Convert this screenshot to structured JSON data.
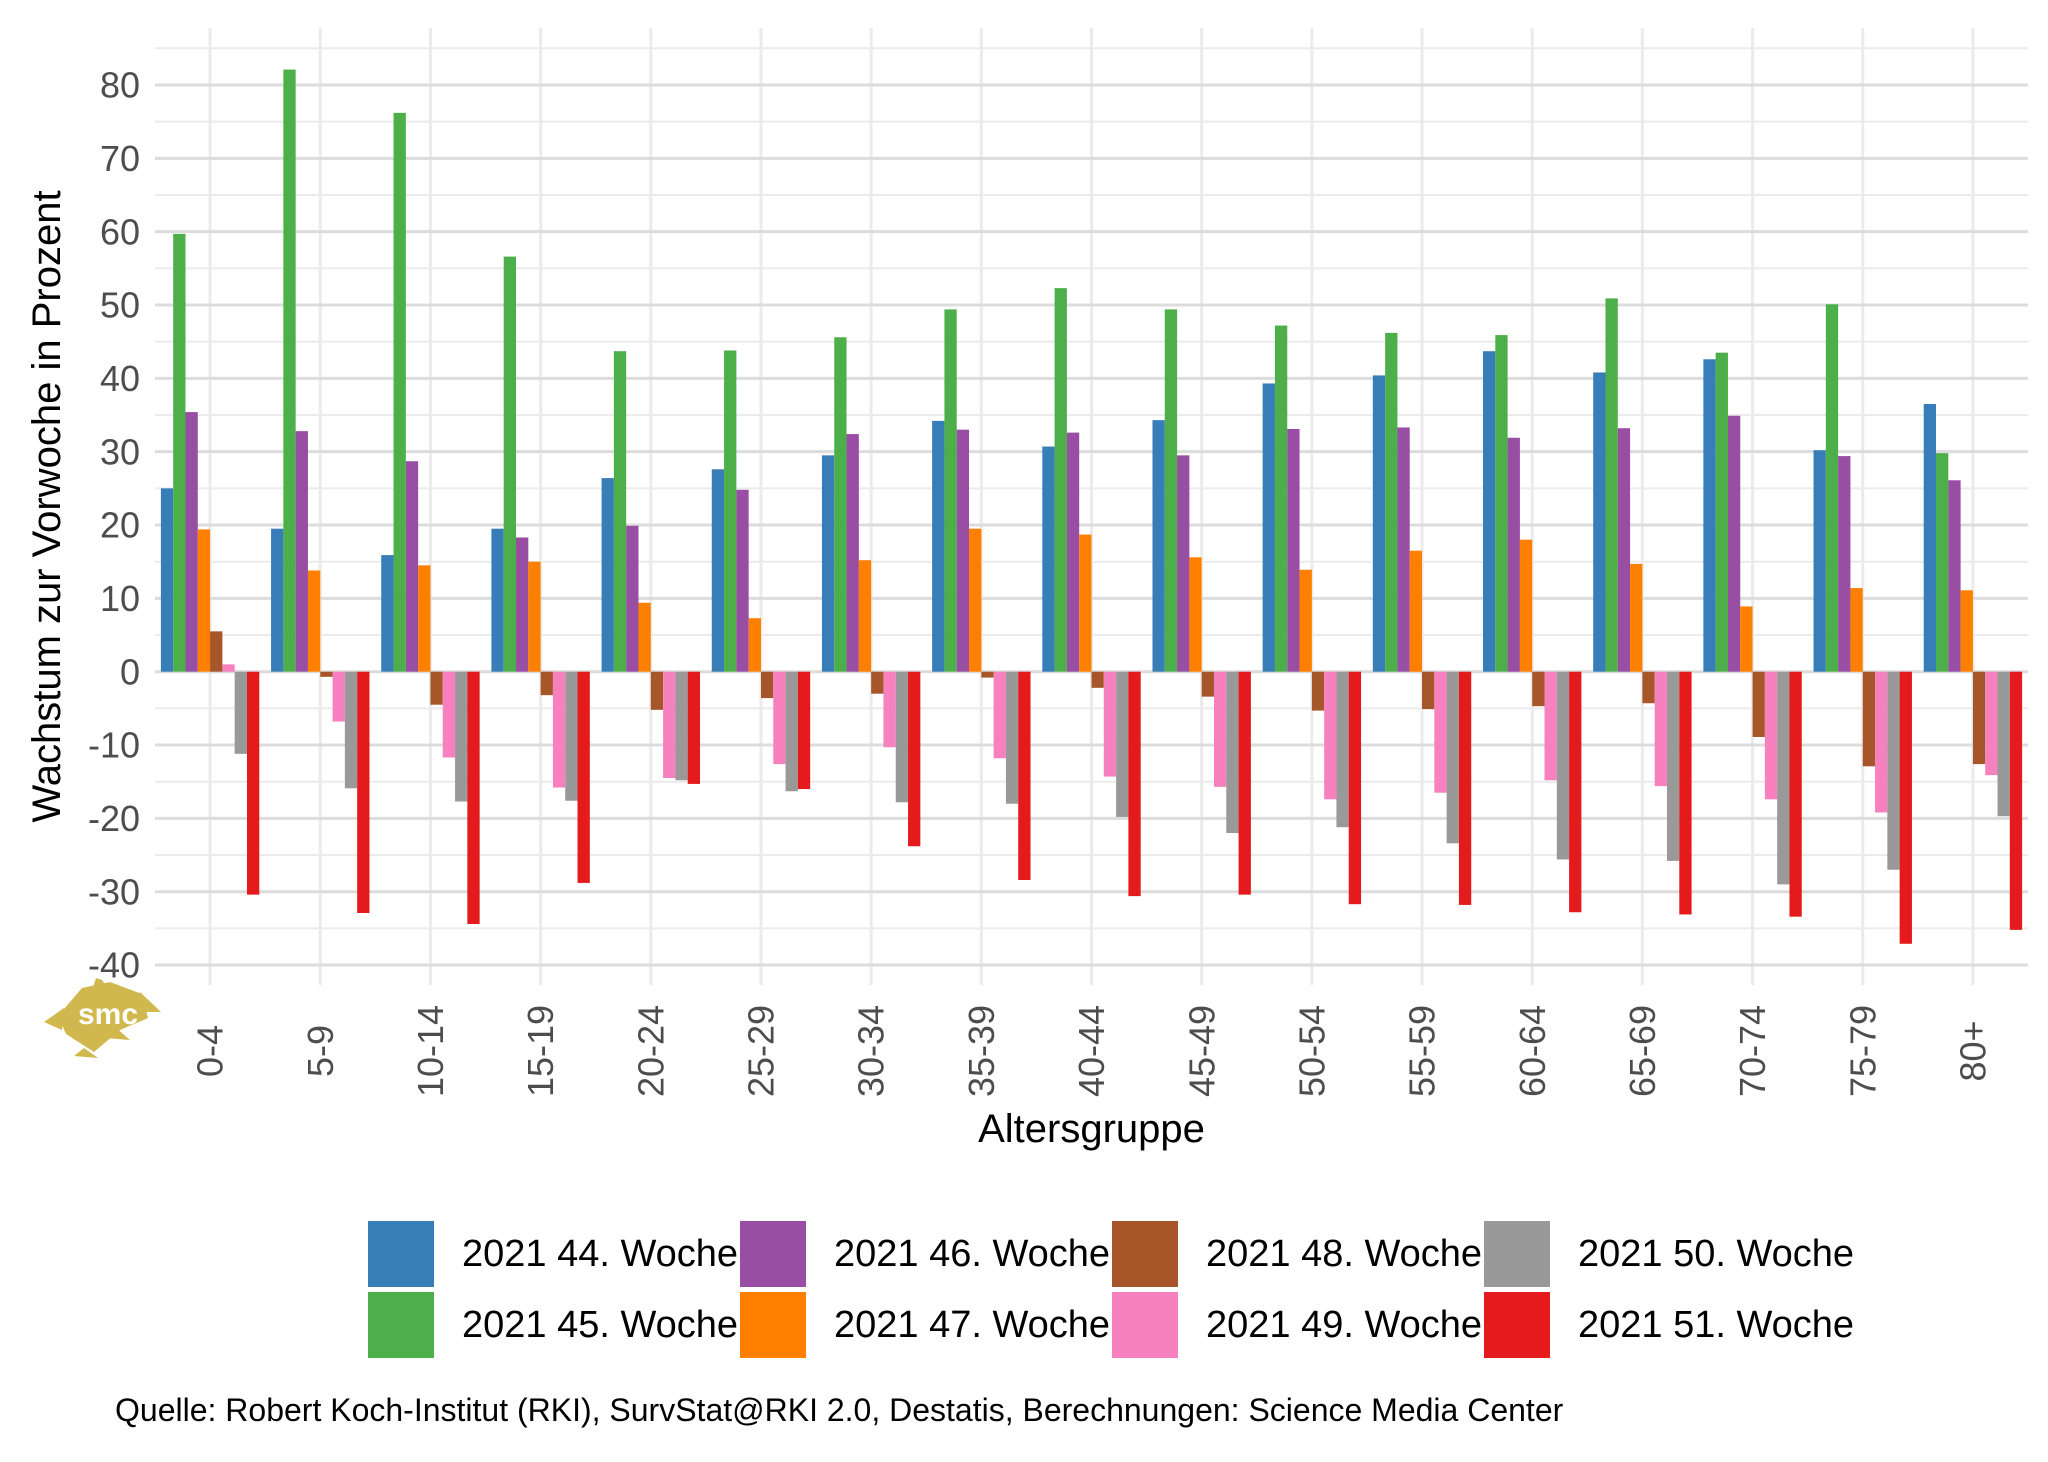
{
  "chart_data": {
    "type": "bar",
    "title": "",
    "xlabel": "Altersgruppe",
    "ylabel": "Wachstum zur Vorwoche in Prozent",
    "categories": [
      "0-4",
      "5-9",
      "10-14",
      "15-19",
      "20-24",
      "25-29",
      "30-34",
      "35-39",
      "40-44",
      "45-49",
      "50-54",
      "55-59",
      "60-64",
      "65-69",
      "70-74",
      "75-79",
      "80+"
    ],
    "series": [
      {
        "name": "2021 44. Woche",
        "color": "#377EB8",
        "values": [
          25.0,
          19.5,
          15.9,
          19.5,
          26.4,
          27.6,
          29.5,
          34.2,
          30.7,
          34.3,
          39.3,
          40.4,
          43.7,
          40.8,
          42.6,
          30.2,
          36.5
        ]
      },
      {
        "name": "2021 45. Woche",
        "color": "#4DAF4A",
        "values": [
          59.7,
          82.1,
          76.2,
          56.6,
          43.7,
          43.8,
          45.6,
          49.4,
          52.3,
          49.4,
          47.2,
          46.2,
          45.9,
          50.9,
          43.5,
          50.1,
          29.8
        ]
      },
      {
        "name": "2021 46. Woche",
        "color": "#984EA3",
        "values": [
          35.4,
          32.8,
          28.7,
          18.3,
          19.9,
          24.8,
          32.4,
          33.0,
          32.6,
          29.5,
          33.1,
          33.3,
          31.9,
          33.2,
          34.9,
          29.4,
          26.1
        ]
      },
      {
        "name": "2021 47. Woche",
        "color": "#FF7F00",
        "values": [
          19.4,
          13.8,
          14.5,
          15.0,
          9.4,
          7.3,
          15.2,
          19.5,
          18.7,
          15.6,
          13.9,
          16.5,
          18.0,
          14.7,
          8.9,
          11.4,
          11.1
        ]
      },
      {
        "name": "2021 48. Woche",
        "color": "#A65628",
        "values": [
          5.5,
          -0.7,
          -4.5,
          -3.2,
          -5.2,
          -3.6,
          -3.0,
          -0.8,
          -2.2,
          -3.4,
          -5.3,
          -5.1,
          -4.7,
          -4.3,
          -8.9,
          -12.9,
          -12.6
        ]
      },
      {
        "name": "2021 49. Woche",
        "color": "#F781BF",
        "values": [
          1.0,
          -6.8,
          -11.7,
          -15.8,
          -14.5,
          -12.6,
          -10.3,
          -11.8,
          -14.3,
          -15.7,
          -17.4,
          -16.5,
          -14.8,
          -15.6,
          -17.4,
          -19.2,
          -14.1
        ]
      },
      {
        "name": "2021 50. Woche",
        "color": "#999999",
        "values": [
          -11.2,
          -15.9,
          -17.7,
          -17.6,
          -14.8,
          -16.3,
          -17.8,
          -18.0,
          -19.8,
          -22.0,
          -21.2,
          -23.4,
          -25.6,
          -25.8,
          -29.0,
          -27.0,
          -19.7
        ]
      },
      {
        "name": "2021 51. Woche",
        "color": "#E41A1C",
        "values": [
          -30.4,
          -32.9,
          -34.4,
          -28.8,
          -15.3,
          -16.0,
          -23.8,
          -28.4,
          -30.6,
          -30.4,
          -31.7,
          -31.8,
          -32.8,
          -33.1,
          -33.4,
          -37.1,
          -35.2
        ]
      }
    ],
    "ylim": [
      -40,
      80
    ],
    "ytick_step": 10,
    "ytick_labels": [
      "80",
      "70",
      "60",
      "50",
      "40",
      "30",
      "20",
      "10",
      "0",
      "-10",
      "-20",
      "-30",
      "-40"
    ],
    "grid": "on",
    "legend_position": "bottom"
  },
  "source_line": "Quelle: Robert Koch-Institut (RKI), SurvStat@RKI 2.0, Destatis, Berechnungen: Science Media Center",
  "logo": {
    "text": "smc",
    "color": "#D1B84E"
  },
  "style_colors": {
    "tick_label": "#4d4d4d",
    "grid_major": "#dcdcdc",
    "grid_minor": "#ebebeb",
    "axis_title": "#000000"
  }
}
